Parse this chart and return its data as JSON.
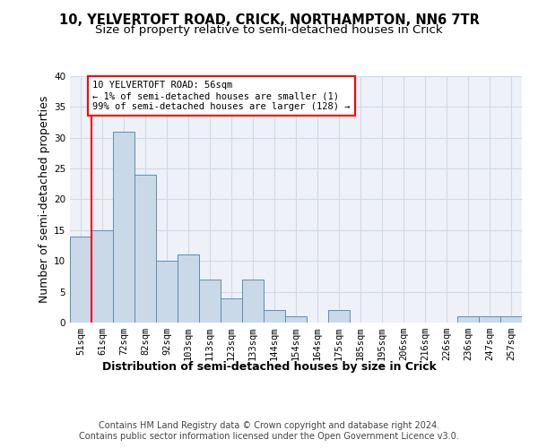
{
  "title_line1": "10, YELVERTOFT ROAD, CRICK, NORTHAMPTON, NN6 7TR",
  "title_line2": "Size of property relative to semi-detached houses in Crick",
  "xlabel": "Distribution of semi-detached houses by size in Crick",
  "ylabel": "Number of semi-detached properties",
  "bin_labels": [
    "51sqm",
    "61sqm",
    "72sqm",
    "82sqm",
    "92sqm",
    "103sqm",
    "113sqm",
    "123sqm",
    "133sqm",
    "144sqm",
    "154sqm",
    "164sqm",
    "175sqm",
    "185sqm",
    "195sqm",
    "206sqm",
    "216sqm",
    "226sqm",
    "236sqm",
    "247sqm",
    "257sqm"
  ],
  "bar_values": [
    14,
    15,
    31,
    24,
    10,
    11,
    7,
    4,
    7,
    2,
    1,
    0,
    2,
    0,
    0,
    0,
    0,
    0,
    1,
    1,
    1
  ],
  "bar_color": "#c9d9e8",
  "bar_edge_color": "#5b8db8",
  "grid_color": "#d0d8e8",
  "background_color": "#eef2f8",
  "annotation_text": "10 YELVERTOFT ROAD: 56sqm\n← 1% of semi-detached houses are smaller (1)\n99% of semi-detached houses are larger (128) →",
  "annotation_box_color": "white",
  "annotation_box_edge": "red",
  "red_line_x": 0.5,
  "ylim": [
    0,
    40
  ],
  "yticks": [
    0,
    5,
    10,
    15,
    20,
    25,
    30,
    35,
    40
  ],
  "footer_line1": "Contains HM Land Registry data © Crown copyright and database right 2024.",
  "footer_line2": "Contains public sector information licensed under the Open Government Licence v3.0.",
  "title_fontsize": 10.5,
  "subtitle_fontsize": 9.5,
  "axis_label_fontsize": 9,
  "tick_fontsize": 7.5,
  "annotation_fontsize": 7.5,
  "footer_fontsize": 7
}
